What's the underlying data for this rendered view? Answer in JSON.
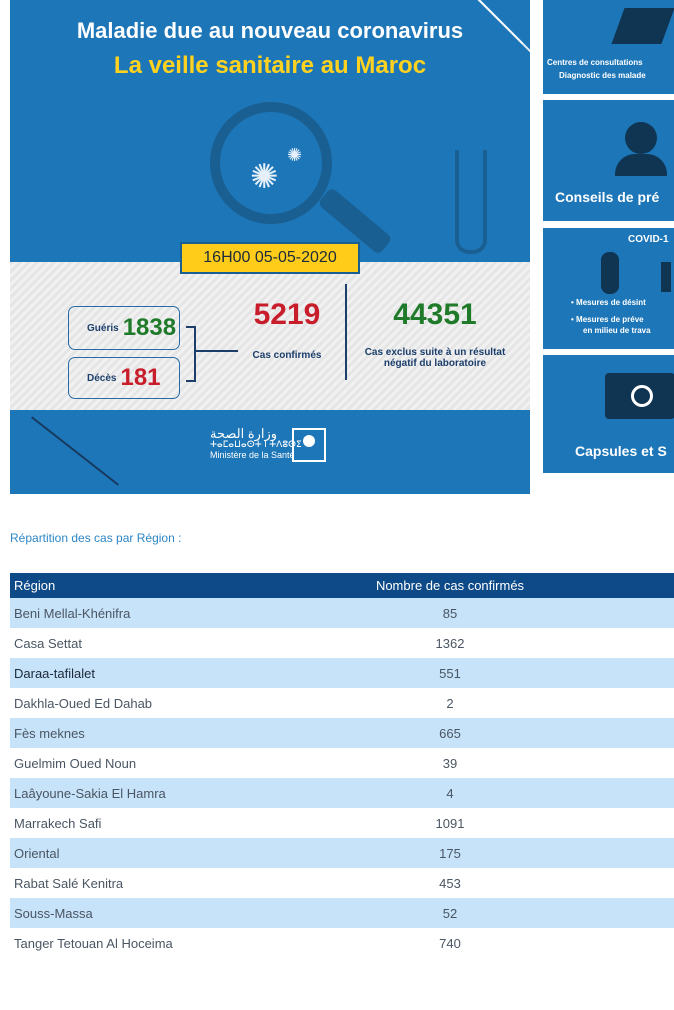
{
  "banner": {
    "title_line1": "Maladie due au nouveau coronavirus",
    "title_line2": "La veille sanitaire au Maroc",
    "timestamp": "16H00  05-05-2020",
    "recovered": {
      "label": "Guéris",
      "value": "1838"
    },
    "deaths": {
      "label": "Décès",
      "value": "181"
    },
    "confirmed": {
      "value": "5219",
      "label": "Cas confirmés"
    },
    "excluded": {
      "value": "44351",
      "label": "Cas exclus suite à un résultat négatif du laboratoire"
    },
    "ministry": {
      "arabic": "وزارة الصحة",
      "tifinagh": "ⵜⴰⵎⴰⵡⴰⵙⵜ ⵏ ⵜⴷⵓⵙⵉ",
      "french": "Ministère de la Santé"
    },
    "colors": {
      "blue": "#1d76b8",
      "yellow": "#ffcc1a",
      "red": "#c81e2c",
      "green": "#1f7a2a"
    }
  },
  "side_cards": [
    {
      "line1": "Centres de consultations",
      "line2": "Diagnostic des malade"
    },
    {
      "title": "Conseils de pré"
    },
    {
      "header": "COVID-1",
      "bullet1": "Mesures de désint",
      "bullet2": "Mesures de préve",
      "bullet2b": "en milieu de trava"
    },
    {
      "title": "Capsules et S"
    }
  ],
  "section_title": "Répartition des cas par Région :",
  "table": {
    "headers": {
      "region": "Région",
      "count": "Nombre de cas confirmés"
    },
    "rows": [
      {
        "region": "Beni Mellal-Khénifra",
        "count": "85"
      },
      {
        "region": "Casa Settat",
        "count": "1362"
      },
      {
        "region": "Daraa-tafilalet",
        "count": "551"
      },
      {
        "region": "Dakhla-Oued Ed Dahab",
        "count": "2"
      },
      {
        "region": "Fès meknes",
        "count": "665"
      },
      {
        "region": "Guelmim Oued Noun",
        "count": "39"
      },
      {
        "region": "Laâyoune-Sakia El Hamra",
        "count": "4"
      },
      {
        "region": "Marrakech Safi",
        "count": "1091"
      },
      {
        "region": "Oriental",
        "count": "175"
      },
      {
        "region": "Rabat Salé Kenitra",
        "count": "453"
      },
      {
        "region": "Souss-Massa",
        "count": "52"
      },
      {
        "region": "Tanger Tetouan Al Hoceima",
        "count": "740"
      }
    ]
  }
}
